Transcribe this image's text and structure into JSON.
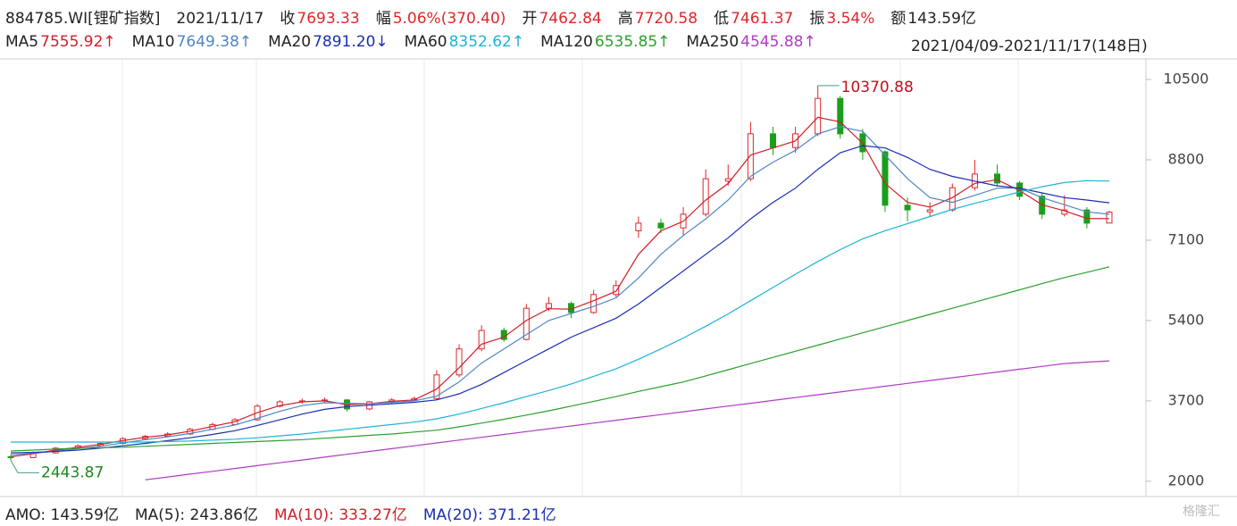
{
  "chart_data": {
    "type": "candlestick",
    "header": [
      {
        "label": "884785.WI[锂矿指数]",
        "value": null
      },
      {
        "label": "2021/11/17",
        "value": null
      },
      {
        "label": "收",
        "value": "7693.33"
      },
      {
        "label": "幅",
        "value": "5.06%(370.40)"
      },
      {
        "label": "开",
        "value": "7462.84"
      },
      {
        "label": "高",
        "value": "7720.58"
      },
      {
        "label": "低",
        "value": "7461.37"
      },
      {
        "label": "振",
        "value": "3.54%"
      },
      {
        "label": "额",
        "value": "143.59亿"
      }
    ],
    "date_range": "2021/04/09-2021/11/17(148日)",
    "ylim": [
      1790,
      10670
    ],
    "yticks": [
      2000,
      3700,
      5400,
      7100,
      8800,
      10500
    ],
    "up_color": "#e0262b",
    "down_color": "#1b9e1b",
    "candles": [
      [
        2520,
        2560,
        2443.87,
        2500
      ],
      [
        2500,
        2630,
        2490,
        2600
      ],
      [
        2600,
        2720,
        2580,
        2700
      ],
      [
        2700,
        2780,
        2680,
        2750
      ],
      [
        2750,
        2830,
        2730,
        2800
      ],
      [
        2800,
        2930,
        2780,
        2900
      ],
      [
        2900,
        2980,
        2870,
        2950
      ],
      [
        2950,
        3040,
        2930,
        3000
      ],
      [
        3000,
        3130,
        2980,
        3100
      ],
      [
        3100,
        3240,
        3080,
        3200
      ],
      [
        3200,
        3340,
        3180,
        3300
      ],
      [
        3300,
        3630,
        3280,
        3590
      ],
      [
        3590,
        3720,
        3560,
        3680
      ],
      [
        3680,
        3750,
        3640,
        3700
      ],
      [
        3700,
        3770,
        3660,
        3720
      ],
      [
        3720,
        3740,
        3480,
        3530
      ],
      [
        3530,
        3700,
        3500,
        3680
      ],
      [
        3680,
        3760,
        3650,
        3720
      ],
      [
        3720,
        3790,
        3700,
        3750
      ],
      [
        3750,
        4350,
        3730,
        4250
      ],
      [
        4250,
        4900,
        4200,
        4800
      ],
      [
        4800,
        5300,
        4750,
        5190
      ],
      [
        5190,
        5250,
        4950,
        5000
      ],
      [
        5000,
        5750,
        4980,
        5660
      ],
      [
        5660,
        5900,
        5600,
        5760
      ],
      [
        5760,
        5800,
        5450,
        5570
      ],
      [
        5570,
        6050,
        5540,
        5950
      ],
      [
        5950,
        6250,
        5900,
        6140
      ],
      [
        7300,
        7600,
        7150,
        7460
      ],
      [
        7460,
        7550,
        7250,
        7360
      ],
      [
        7360,
        7800,
        7200,
        7650
      ],
      [
        7650,
        8600,
        7600,
        8400
      ],
      [
        8350,
        8700,
        8250,
        8400
      ],
      [
        8400,
        9600,
        8350,
        9350
      ],
      [
        9350,
        9500,
        8900,
        9060
      ],
      [
        9060,
        9500,
        8950,
        9350
      ],
      [
        9350,
        10370.88,
        9300,
        10100
      ],
      [
        10100,
        10150,
        9250,
        9350
      ],
      [
        9350,
        9450,
        8800,
        8970
      ],
      [
        8970,
        9000,
        7700,
        7840
      ],
      [
        7840,
        8000,
        7500,
        7740
      ],
      [
        7700,
        7900,
        7600,
        7740
      ],
      [
        7740,
        8300,
        7700,
        8210
      ],
      [
        8210,
        8800,
        8150,
        8500
      ],
      [
        8500,
        8700,
        8250,
        8310
      ],
      [
        8310,
        8350,
        7950,
        8030
      ],
      [
        8030,
        8100,
        7550,
        7650
      ],
      [
        7650,
        8050,
        7600,
        7740
      ],
      [
        7740,
        7800,
        7350,
        7460
      ],
      [
        7462.84,
        7720.58,
        7461.37,
        7693.33
      ]
    ],
    "series": [
      {
        "name": "MA5",
        "value_label": "7555.92↑",
        "color": "#d0202a",
        "values": [
          2520,
          2580,
          2660,
          2720,
          2780,
          2860,
          2930,
          2980,
          3060,
          3160,
          3260,
          3450,
          3600,
          3680,
          3700,
          3620,
          3640,
          3690,
          3720,
          3950,
          4400,
          4900,
          5050,
          5400,
          5650,
          5640,
          5820,
          6020,
          6800,
          7300,
          7500,
          7950,
          8300,
          8900,
          9050,
          9200,
          9700,
          9600,
          9150,
          8300,
          7900,
          7800,
          8000,
          8300,
          8380,
          8150,
          7850,
          7720,
          7560,
          7555.92
        ]
      },
      {
        "name": "MA10",
        "value_label": "7649.38↑",
        "color": "#4f86c6",
        "values": [
          2560,
          2590,
          2640,
          2690,
          2740,
          2810,
          2880,
          2940,
          3010,
          3100,
          3190,
          3330,
          3480,
          3600,
          3660,
          3650,
          3640,
          3670,
          3700,
          3800,
          4100,
          4500,
          4800,
          5100,
          5400,
          5550,
          5700,
          5880,
          6300,
          6800,
          7200,
          7550,
          7950,
          8450,
          8750,
          9000,
          9350,
          9500,
          9400,
          8900,
          8400,
          8000,
          7900,
          8050,
          8200,
          8200,
          8000,
          7850,
          7700,
          7649.38
        ]
      },
      {
        "name": "MA20",
        "value_label": "7891.20↓",
        "color": "#1a2fb0",
        "values": [
          2600,
          2610,
          2630,
          2660,
          2700,
          2750,
          2800,
          2860,
          2920,
          2990,
          3070,
          3180,
          3300,
          3420,
          3520,
          3580,
          3610,
          3640,
          3670,
          3720,
          3850,
          4050,
          4300,
          4550,
          4800,
          5050,
          5250,
          5450,
          5750,
          6100,
          6450,
          6800,
          7150,
          7550,
          7900,
          8200,
          8600,
          8950,
          9100,
          9050,
          8850,
          8600,
          8450,
          8350,
          8250,
          8200,
          8100,
          8000,
          7950,
          7891.2
        ]
      },
      {
        "name": "MA60",
        "value_label": "8352.62↑",
        "color": "#1fb3d6",
        "values": [
          2830,
          2830,
          2830,
          2830,
          2830,
          2830,
          2830,
          2840,
          2850,
          2870,
          2890,
          2920,
          2960,
          3000,
          3050,
          3100,
          3150,
          3200,
          3250,
          3320,
          3420,
          3540,
          3660,
          3790,
          3920,
          4060,
          4220,
          4380,
          4580,
          4800,
          5030,
          5280,
          5540,
          5820,
          6100,
          6380,
          6650,
          6900,
          7130,
          7300,
          7450,
          7600,
          7750,
          7880,
          8000,
          8120,
          8230,
          8320,
          8360,
          8352.62
        ]
      },
      {
        "name": "MA120",
        "value_label": "6535.85↑",
        "color": "#2ca02c",
        "values": [
          2640,
          2660,
          2680,
          2700,
          2710,
          2720,
          2740,
          2760,
          2780,
          2800,
          2820,
          2840,
          2860,
          2880,
          2910,
          2940,
          2970,
          3000,
          3040,
          3080,
          3150,
          3230,
          3310,
          3400,
          3490,
          3590,
          3690,
          3790,
          3900,
          4000,
          4100,
          4230,
          4360,
          4490,
          4620,
          4750,
          4880,
          5010,
          5140,
          5270,
          5400,
          5530,
          5660,
          5790,
          5920,
          6050,
          6180,
          6310,
          6420,
          6535.85
        ]
      },
      {
        "name": "MA250",
        "value_label": "4545.88↑",
        "color": "#b03cc4",
        "values": [
          null,
          null,
          null,
          null,
          null,
          null,
          2030,
          2090,
          2150,
          2210,
          2270,
          2330,
          2390,
          2450,
          2510,
          2570,
          2630,
          2690,
          2750,
          2810,
          2870,
          2930,
          2990,
          3050,
          3110,
          3170,
          3230,
          3290,
          3350,
          3410,
          3470,
          3530,
          3590,
          3650,
          3710,
          3770,
          3830,
          3890,
          3950,
          4010,
          4070,
          4130,
          4190,
          4250,
          4310,
          4370,
          4430,
          4490,
          4520,
          4545.88
        ]
      }
    ],
    "annotations": [
      {
        "value": 10370.88,
        "color": "#c0101a"
      },
      {
        "value": 2443.87,
        "color": "#1b8a1b"
      }
    ],
    "footer": [
      {
        "label": "AMO: 143.59亿",
        "color": "#222222"
      },
      {
        "label": "MA(5): 243.86亿",
        "color": "#222222"
      },
      {
        "label": "MA(10): 333.27亿",
        "color": "#d0202a"
      },
      {
        "label": "MA(20): 371.21亿",
        "color": "#1a2fb0"
      }
    ],
    "watermark": "格隆汇"
  }
}
